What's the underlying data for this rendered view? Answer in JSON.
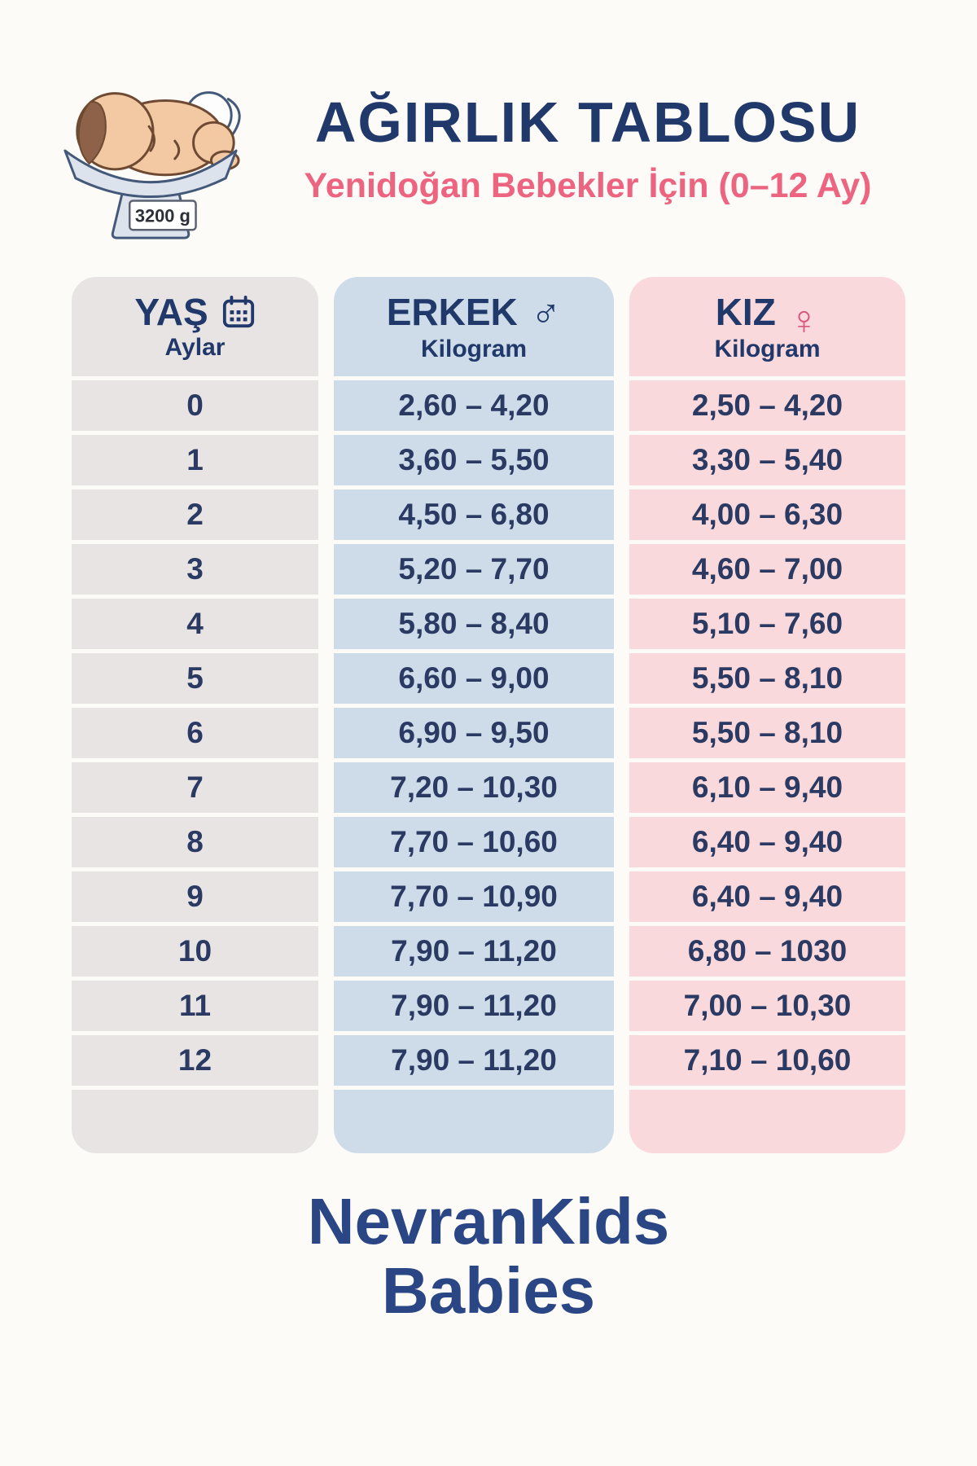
{
  "header": {
    "title": "AĞIRLIK TABLOSU",
    "subtitle": "Yenidoğan Bebekler İçin (0–12 Ay)",
    "scale_display": "3200 g"
  },
  "table": {
    "columns": [
      {
        "label": "YAŞ",
        "sublabel": "Aylar",
        "icon": "calendar-icon"
      },
      {
        "label": "ERKEK",
        "sublabel": "Kilogram",
        "icon": "male-icon",
        "symbol": "♂"
      },
      {
        "label": "KIZ",
        "sublabel": "Kilogram",
        "icon": "female-icon",
        "symbol": "♀"
      }
    ],
    "rows": [
      {
        "age": "0",
        "erkek": "2,60 – 4,20",
        "kiz": "2,50 – 4,20"
      },
      {
        "age": "1",
        "erkek": "3,60 – 5,50",
        "kiz": "3,30 – 5,40"
      },
      {
        "age": "2",
        "erkek": "4,50 – 6,80",
        "kiz": "4,00 – 6,30"
      },
      {
        "age": "3",
        "erkek": "5,20 – 7,70",
        "kiz": "4,60 – 7,00"
      },
      {
        "age": "4",
        "erkek": "5,80 – 8,40",
        "kiz": "5,10 – 7,60"
      },
      {
        "age": "5",
        "erkek": "6,60 – 9,00",
        "kiz": "5,50 – 8,10"
      },
      {
        "age": "6",
        "erkek": "6,90 – 9,50",
        "kiz": "5,50 – 8,10"
      },
      {
        "age": "7",
        "erkek": "7,20 – 10,30",
        "kiz": "6,10 – 9,40"
      },
      {
        "age": "8",
        "erkek": "7,70 – 10,60",
        "kiz": "6,40 – 9,40"
      },
      {
        "age": "9",
        "erkek": "7,70 – 10,90",
        "kiz": "6,40 – 9,40"
      },
      {
        "age": "10",
        "erkek": "7,90 – 11,20",
        "kiz": "6,80 – 1030"
      },
      {
        "age": "11",
        "erkek": "7,90 – 11,20",
        "kiz": "7,00 – 10,30"
      },
      {
        "age": "12",
        "erkek": "7,90 – 11,20",
        "kiz": "7,10 – 10,60"
      }
    ]
  },
  "footer": {
    "logo_line1": "NevranKids",
    "logo_line2": "Babies"
  },
  "colors": {
    "page_bg": "#fcfbf7",
    "navy": "#21386b",
    "navy_text": "#2a3a63",
    "pink": "#ec6480",
    "col1_bg": "#e9e4e4",
    "col2_bg": "#cedce9",
    "col3_bg": "#f9d9dc",
    "female_pink": "#d8587e",
    "logo_navy": "#2a4684"
  }
}
